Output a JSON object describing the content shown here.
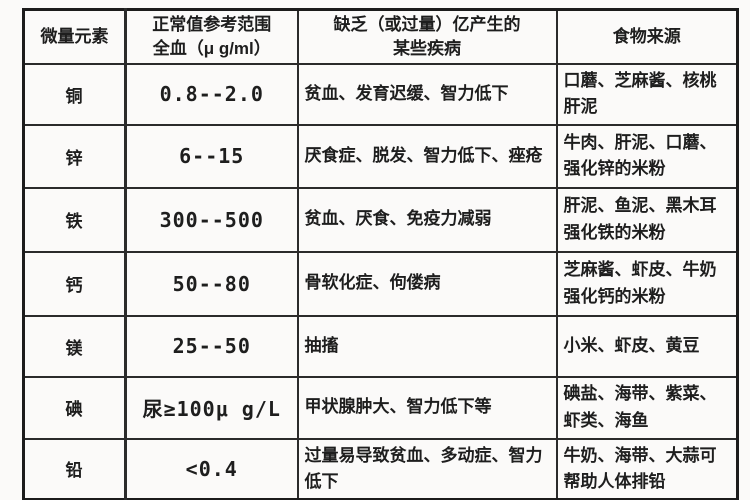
{
  "table": {
    "title_implicit": "微量元素参考表",
    "headers": [
      "微量元素",
      "正常值参考范围\n全血（μ g/ml）",
      "缺乏（或过量）亿产生的\n某些疾病",
      "食物来源"
    ],
    "rows": [
      {
        "element": "铜",
        "range": "0.8--2.0",
        "diseases": "贫血、发育迟缓、智力低下",
        "foods": "口蘑、芝麻酱、核桃肝泥"
      },
      {
        "element": "锌",
        "range": "6--15",
        "diseases": "厌食症、脱发、智力低下、痤疮",
        "foods": "牛肉、肝泥、口蘑、强化锌的米粉"
      },
      {
        "element": "铁",
        "range": "300--500",
        "diseases": "贫血、厌食、免疫力减弱",
        "foods": "肝泥、鱼泥、黑木耳强化铁的米粉"
      },
      {
        "element": "钙",
        "range": "50--80",
        "diseases": "骨软化症、佝偻病",
        "foods": "芝麻酱、虾皮、牛奶强化钙的米粉"
      },
      {
        "element": "镁",
        "range": "25--50",
        "diseases": "抽搐",
        "foods": "小米、虾皮、黄豆"
      },
      {
        "element": "碘",
        "range": "尿≥100μ g/L",
        "diseases": "甲状腺肿大、智力低下等",
        "foods": "碘盐、海带、紫菜、虾类、海鱼"
      },
      {
        "element": "铅",
        "range": "<0.4",
        "diseases": "过量易导致贫血、多动症、智力低下",
        "foods": "牛奶、海带、大蒜可帮助人体排铅"
      }
    ]
  },
  "colors": {
    "background": "#fbfaf9",
    "ink": "#1e1e1e",
    "grid_line": "#2b2b2b",
    "outer_border": "#1c1c1c"
  }
}
